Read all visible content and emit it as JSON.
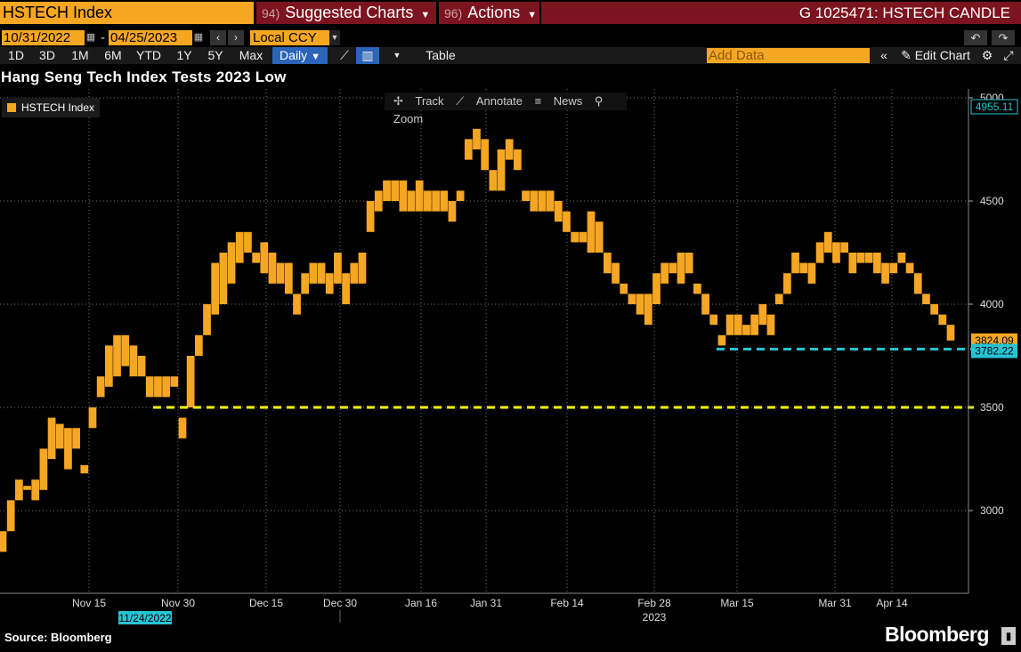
{
  "header": {
    "security": "HSTECH Index",
    "suggested_charts": {
      "num": "94)",
      "label": "Suggested Charts"
    },
    "actions": {
      "num": "96)",
      "label": "Actions"
    },
    "chart_id": "G 1025471: HSTECH CANDLE"
  },
  "controls": {
    "start_date": "10/31/2022",
    "end_date": "04/25/2023",
    "currency": "Local CCY",
    "periods": [
      "1D",
      "3D",
      "1M",
      "6M",
      "YTD",
      "1Y",
      "5Y",
      "Max"
    ],
    "frequency": "Daily",
    "table_label": "Table",
    "add_data_placeholder": "Add Data",
    "edit_chart": "Edit Chart"
  },
  "toolbar": {
    "track": "Track",
    "annotate": "Annotate",
    "news": "News",
    "zoom": "Zoom"
  },
  "colors": {
    "candle": "#f5a623",
    "line_3500": "#ffff00",
    "line_low": "#27c3d3",
    "title_bar": "#7c1420"
  },
  "chart_data": {
    "type": "candlestick",
    "title": "Hang Seng Tech Index Tests 2023 Low",
    "series_name": "HSTECH Index",
    "y_axis": {
      "position": "right",
      "ticks": [
        3000,
        3500,
        4000,
        4500,
        5000
      ],
      "range": [
        2700,
        5050
      ]
    },
    "x_axis": {
      "tick_labels": [
        "Nov 15",
        "Nov 30",
        "Dec 15",
        "Dec 30",
        "Jan 16",
        "Jan 31",
        "Feb 14",
        "Feb 28",
        "Mar 15",
        "Mar 31",
        "Apr 14"
      ],
      "year_label": "2023",
      "crosshair_date": "11/24/2022"
    },
    "price_labels": {
      "high_marker": "4955.11",
      "last": "3824.09",
      "low_2023": "3782.22"
    },
    "reference_lines": [
      {
        "value": 3782.22,
        "color": "#27c3d3",
        "style": "dashed"
      },
      {
        "value": 3500,
        "color": "#ffff00",
        "style": "dashed"
      }
    ],
    "candles": [
      [
        2800,
        2900
      ],
      [
        2900,
        3050
      ],
      [
        3050,
        3150
      ],
      [
        3100,
        3120
      ],
      [
        3050,
        3150
      ],
      [
        3100,
        3300
      ],
      [
        3250,
        3450
      ],
      [
        3300,
        3420
      ],
      [
        3200,
        3400
      ],
      [
        3300,
        3400
      ],
      [
        3180,
        3220
      ],
      [
        3400,
        3500
      ],
      [
        3550,
        3650
      ],
      [
        3600,
        3800
      ],
      [
        3650,
        3850
      ],
      [
        3700,
        3850
      ],
      [
        3650,
        3800
      ],
      [
        3650,
        3750
      ],
      [
        3550,
        3650
      ],
      [
        3550,
        3650
      ],
      [
        3550,
        3650
      ],
      [
        3600,
        3650
      ],
      [
        3350,
        3450
      ],
      [
        3500,
        3750
      ],
      [
        3750,
        3850
      ],
      [
        3850,
        4000
      ],
      [
        3950,
        4200
      ],
      [
        4000,
        4250
      ],
      [
        4100,
        4300
      ],
      [
        4200,
        4350
      ],
      [
        4250,
        4350
      ],
      [
        4200,
        4250
      ],
      [
        4150,
        4300
      ],
      [
        4100,
        4250
      ],
      [
        4100,
        4200
      ],
      [
        4050,
        4200
      ],
      [
        3950,
        4050
      ],
      [
        4050,
        4150
      ],
      [
        4100,
        4200
      ],
      [
        4100,
        4200
      ],
      [
        4050,
        4150
      ],
      [
        4100,
        4250
      ],
      [
        4000,
        4150
      ],
      [
        4100,
        4200
      ],
      [
        4100,
        4250
      ],
      [
        4350,
        4500
      ],
      [
        4450,
        4550
      ],
      [
        4500,
        4600
      ],
      [
        4500,
        4600
      ],
      [
        4450,
        4600
      ],
      [
        4450,
        4550
      ],
      [
        4450,
        4600
      ],
      [
        4450,
        4550
      ],
      [
        4450,
        4550
      ],
      [
        4450,
        4550
      ],
      [
        4400,
        4500
      ],
      [
        4500,
        4550
      ],
      [
        4700,
        4800
      ],
      [
        4750,
        4850
      ],
      [
        4650,
        4800
      ],
      [
        4550,
        4650
      ],
      [
        4550,
        4750
      ],
      [
        4700,
        4800
      ],
      [
        4650,
        4750
      ],
      [
        4500,
        4550
      ],
      [
        4450,
        4550
      ],
      [
        4450,
        4550
      ],
      [
        4450,
        4550
      ],
      [
        4400,
        4500
      ],
      [
        4350,
        4450
      ],
      [
        4300,
        4350
      ],
      [
        4300,
        4350
      ],
      [
        4250,
        4450
      ],
      [
        4250,
        4400
      ],
      [
        4150,
        4250
      ],
      [
        4100,
        4200
      ],
      [
        4050,
        4100
      ],
      [
        4000,
        4050
      ],
      [
        3950,
        4050
      ],
      [
        3900,
        4050
      ],
      [
        4000,
        4150
      ],
      [
        4100,
        4200
      ],
      [
        4150,
        4200
      ],
      [
        4100,
        4250
      ],
      [
        4150,
        4250
      ],
      [
        4050,
        4100
      ],
      [
        3950,
        4050
      ],
      [
        3900,
        3950
      ],
      [
        3800,
        3850
      ],
      [
        3850,
        3950
      ],
      [
        3850,
        3950
      ],
      [
        3850,
        3900
      ],
      [
        3850,
        3950
      ],
      [
        3900,
        4000
      ],
      [
        3850,
        3950
      ],
      [
        4000,
        4050
      ],
      [
        4050,
        4150
      ],
      [
        4150,
        4250
      ],
      [
        4150,
        4200
      ],
      [
        4100,
        4200
      ],
      [
        4200,
        4300
      ],
      [
        4250,
        4350
      ],
      [
        4200,
        4300
      ],
      [
        4250,
        4300
      ],
      [
        4150,
        4250
      ],
      [
        4200,
        4250
      ],
      [
        4200,
        4250
      ],
      [
        4150,
        4250
      ],
      [
        4100,
        4200
      ],
      [
        4150,
        4200
      ],
      [
        4200,
        4250
      ],
      [
        4150,
        4200
      ],
      [
        4050,
        4150
      ],
      [
        4000,
        4050
      ],
      [
        3950,
        4000
      ],
      [
        3900,
        3950
      ],
      [
        3824,
        3900
      ]
    ]
  }
}
